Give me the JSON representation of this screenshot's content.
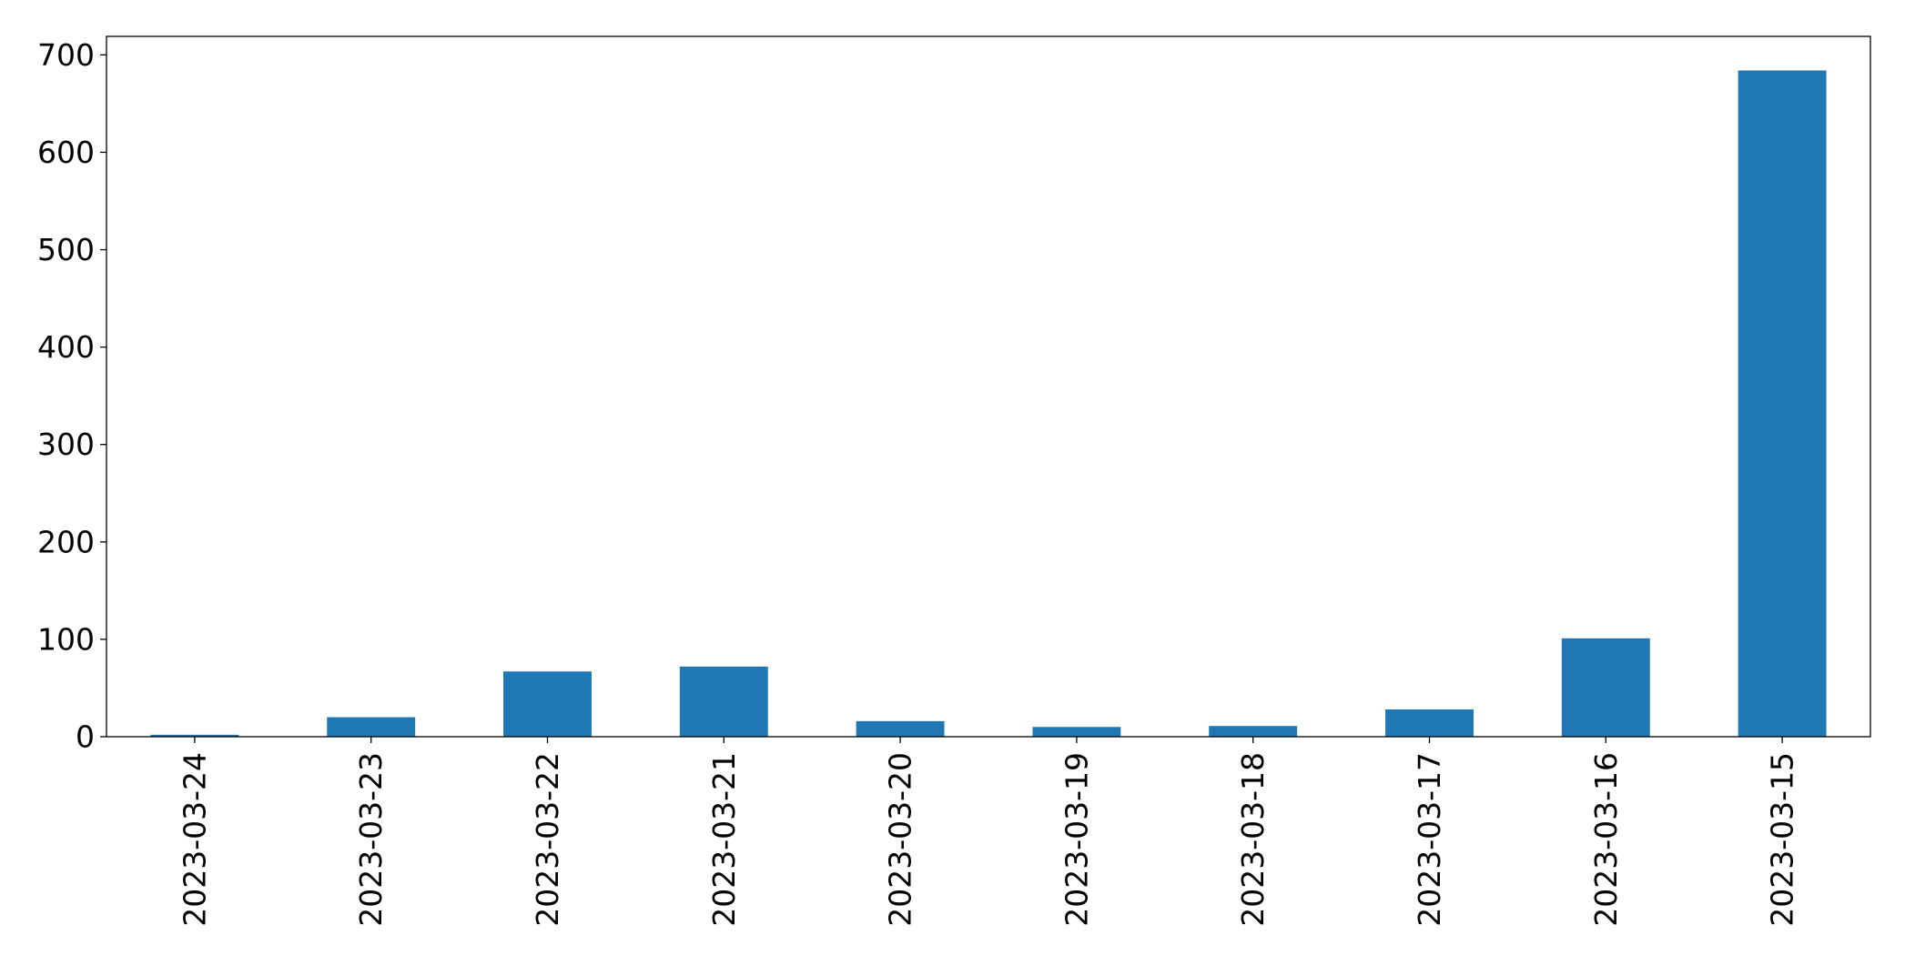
{
  "chart_data": {
    "type": "bar",
    "title": "",
    "xlabel": "",
    "ylabel": "",
    "categories": [
      "2023-03-24",
      "2023-03-23",
      "2023-03-22",
      "2023-03-21",
      "2023-03-20",
      "2023-03-19",
      "2023-03-18",
      "2023-03-17",
      "2023-03-16",
      "2023-03-15"
    ],
    "values": [
      2,
      20,
      67,
      72,
      16,
      10,
      11,
      28,
      101,
      684
    ],
    "ylim": [
      0,
      719
    ],
    "yticks": [
      0,
      100,
      200,
      300,
      400,
      500,
      600,
      700
    ],
    "ytick_labels": [
      "0",
      "100",
      "200",
      "300",
      "400",
      "500",
      "600",
      "700"
    ],
    "x_tick_rotation": "vertical",
    "grid": false,
    "legend": "none",
    "bar_color": "#1f77b4"
  }
}
